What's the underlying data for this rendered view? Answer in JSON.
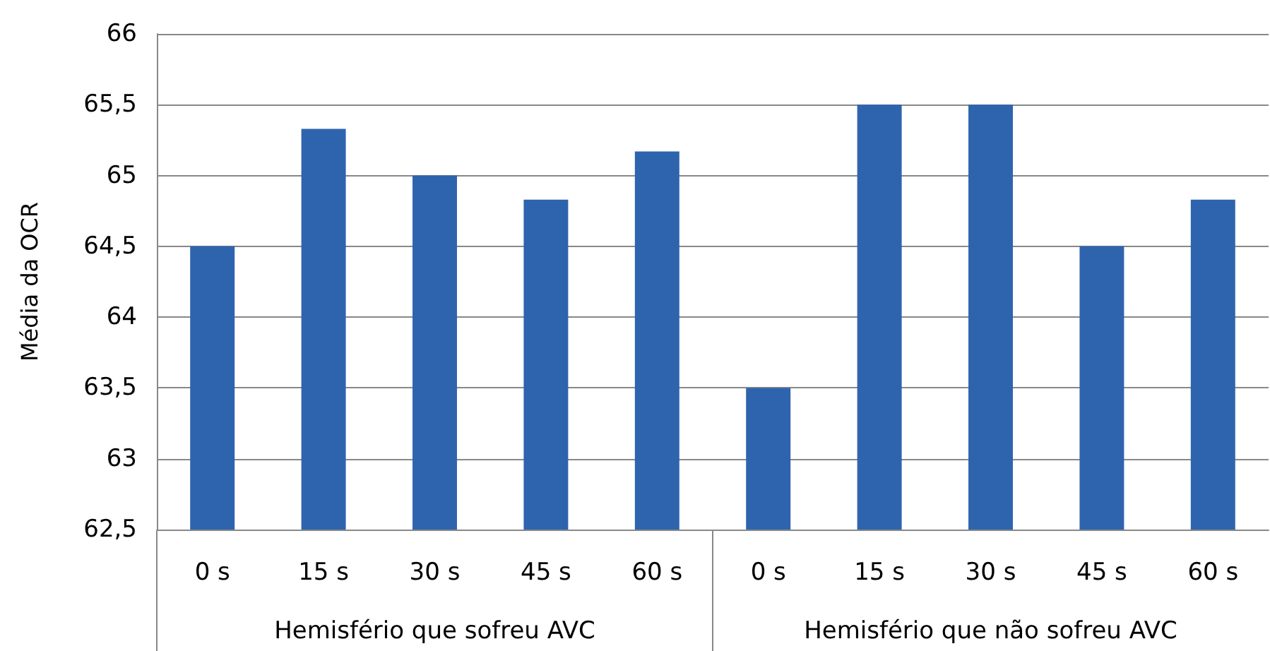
{
  "chart_data": {
    "type": "bar",
    "ylabel": "Média da OCR",
    "categories": [
      "0 s",
      "15 s",
      "30 s",
      "45 s",
      "60 s",
      "0 s",
      "15 s",
      "30 s",
      "45 s",
      "60 s"
    ],
    "values": [
      64.5,
      65.33,
      65.0,
      64.83,
      65.17,
      63.5,
      65.5,
      65.5,
      64.5,
      64.83
    ],
    "color": "#2e64ad",
    "ylim": [
      62.5,
      66
    ],
    "yticks": [
      {
        "value": 62.5,
        "label": "62,5"
      },
      63,
      {
        "value": 63.5,
        "label": "63,5"
      },
      64,
      {
        "value": 64.5,
        "label": "64,5"
      },
      65,
      {
        "value": 65.5,
        "label": "65,5"
      },
      66
    ],
    "grid": "y",
    "annotations": [
      "Hemisfério que sofreu AVC",
      "Hemisfério que não sofreu AVC"
    ]
  }
}
